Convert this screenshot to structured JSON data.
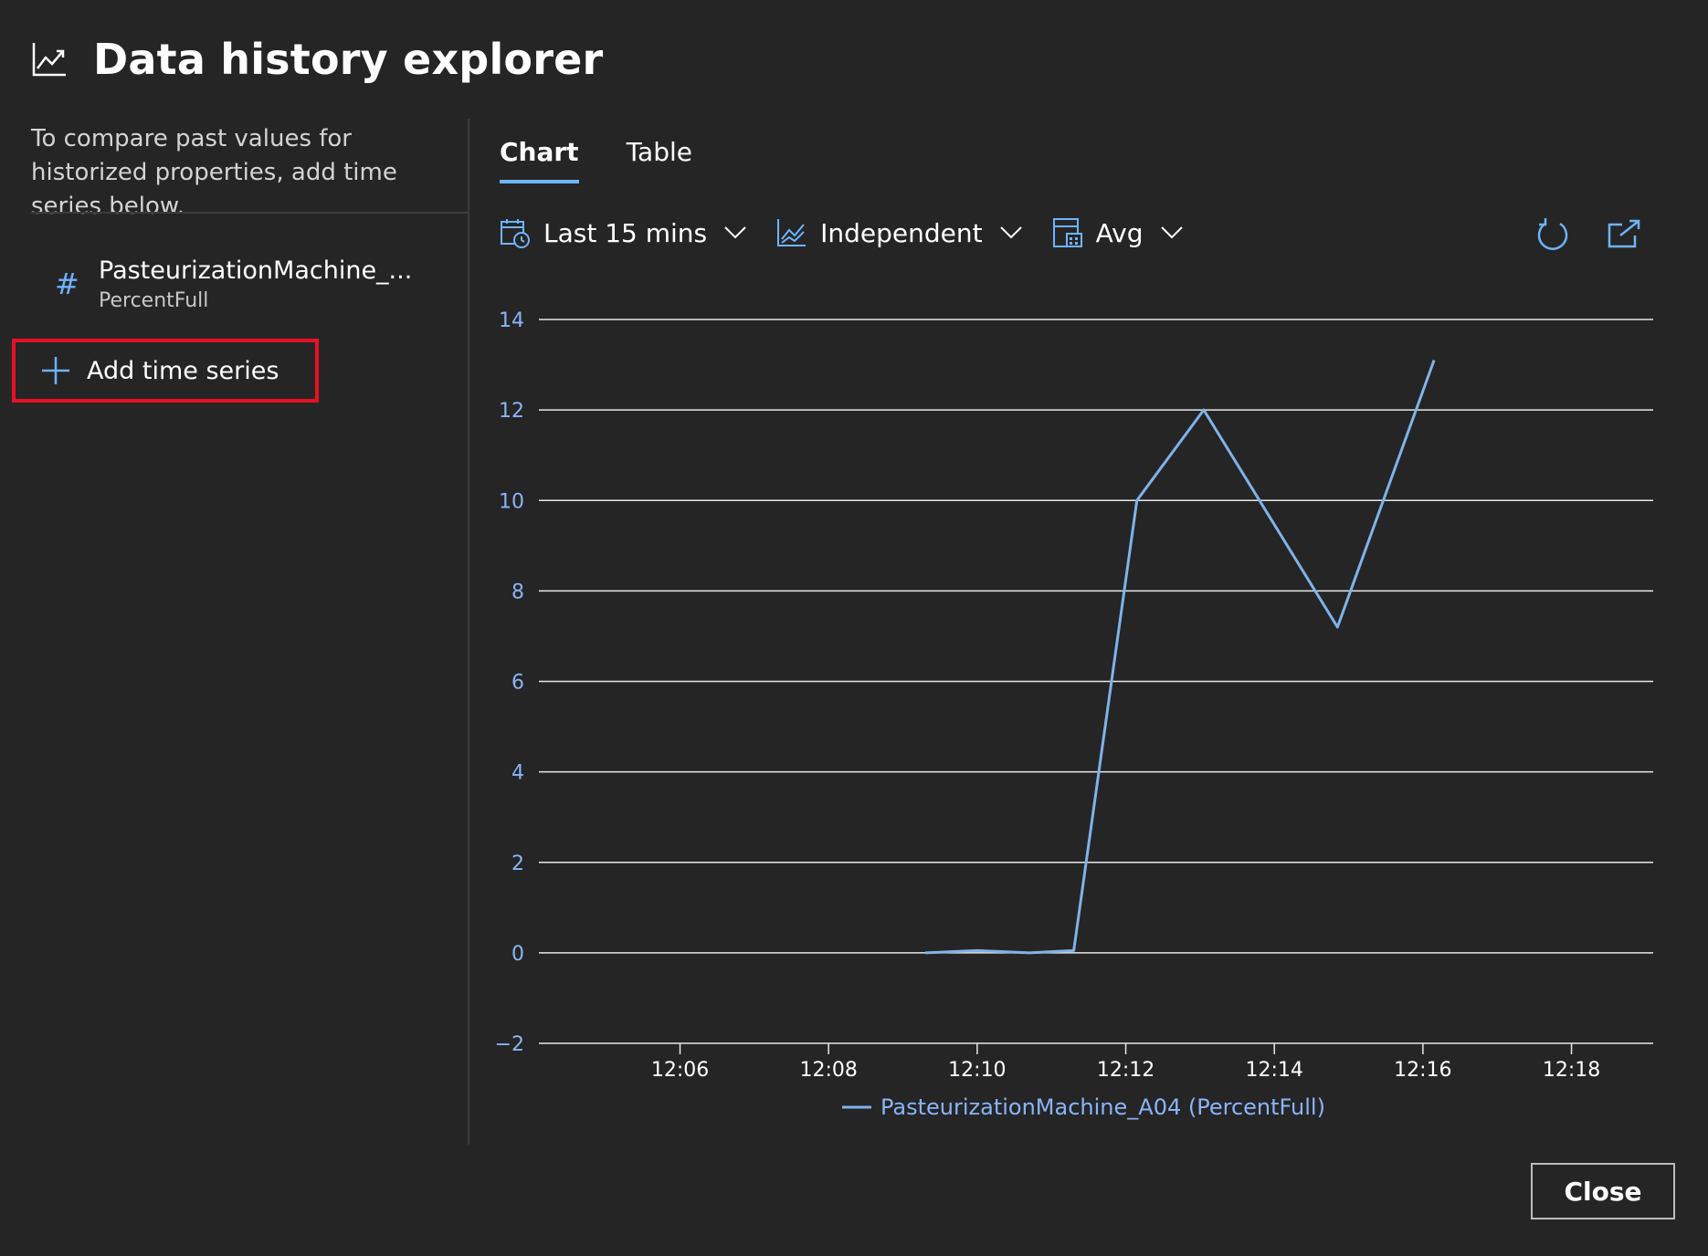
{
  "header": {
    "title": "Data history explorer",
    "icon": "line-chart-icon"
  },
  "left_panel": {
    "description": "To compare past values for historized properties, add time series below.",
    "series": [
      {
        "name": "PasteurizationMachine_...",
        "property": "PercentFull",
        "icon": "hash-icon"
      }
    ],
    "add_label": "Add time series"
  },
  "tabs": [
    {
      "label": "Chart",
      "active": true
    },
    {
      "label": "Table",
      "active": false
    }
  ],
  "toolbar": {
    "time_range": "Last 15 mins",
    "axis_mode": "Independent",
    "aggregation": "Avg"
  },
  "colors": {
    "accent": "#6eb4ff",
    "series": "#7fb3ea",
    "highlight_border": "#e81123",
    "background": "#252526"
  },
  "chart_data": {
    "type": "line",
    "y_ticks": [
      "14",
      "12",
      "10",
      "8",
      "6",
      "4",
      "2",
      "0",
      "−2"
    ],
    "ylim": [
      -2,
      14
    ],
    "x_ticks": [
      "12:06",
      "12:08",
      "12:10",
      "12:12",
      "12:14",
      "12:16",
      "12:18"
    ],
    "x_tick_minutes": [
      6,
      8,
      10,
      12,
      14,
      16,
      18
    ],
    "xlim_minutes": [
      4.1,
      19.1
    ],
    "series": [
      {
        "name": "PasteurizationMachine_A04 (PercentFull)",
        "color": "#7fb3ea",
        "x_minutes": [
          9.3,
          10.0,
          10.7,
          11.3,
          12.15,
          13.05,
          14.85,
          16.15
        ],
        "values": [
          0.0,
          0.05,
          0.0,
          0.05,
          10.0,
          12.0,
          7.2,
          13.1
        ]
      }
    ]
  },
  "footer": {
    "close_label": "Close"
  }
}
